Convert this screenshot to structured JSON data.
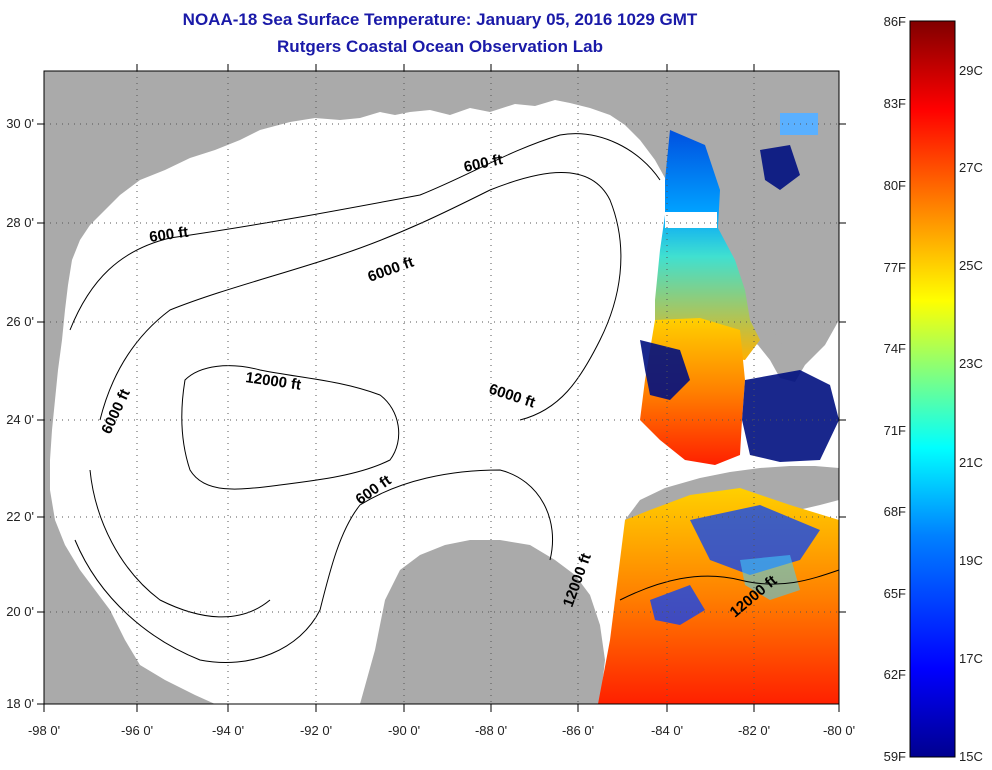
{
  "header": {
    "title": "NOAA-18 Sea Surface Temperature:  January 05, 2016 1029 GMT",
    "subtitle": "Rutgers Coastal Ocean Observation Lab"
  },
  "map": {
    "lon_labels": [
      "-98 0'",
      "-96 0'",
      "-94 0'",
      "-92 0'",
      "-90 0'",
      "-88 0'",
      "-86 0'",
      "-84 0'",
      "-82 0'",
      "-80 0'"
    ],
    "lat_labels": [
      "30 0'",
      "28 0'",
      "26 0'",
      "24 0'",
      "22 0'",
      "20 0'",
      "18 0'"
    ],
    "contour_labels": [
      "600 ft",
      "600 ft",
      "600 ft",
      "6000 ft",
      "6000 ft",
      "6000 ft",
      "12000 ft",
      "12000 ft",
      "12000 ft"
    ],
    "colors": {
      "land": "#aaaaaa",
      "water": "#ffffff",
      "no_data": "#ffffff"
    }
  },
  "colorbar": {
    "f_labels": [
      "86F",
      "83F",
      "80F",
      "77F",
      "74F",
      "71F",
      "68F",
      "65F",
      "62F",
      "59F"
    ],
    "c_labels": [
      "29C",
      "27C",
      "25C",
      "23C",
      "21C",
      "19C",
      "17C",
      "15C"
    ],
    "colors": [
      "#00008f",
      "#0000ff",
      "#0080ff",
      "#00ffff",
      "#80ff80",
      "#ffff00",
      "#ff8000",
      "#ff0000",
      "#800000"
    ]
  }
}
